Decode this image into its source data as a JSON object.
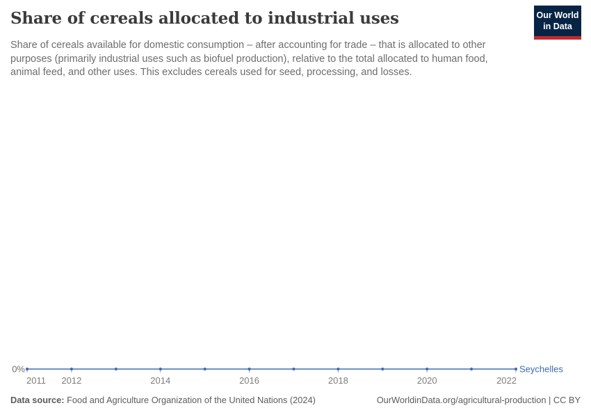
{
  "header": {
    "title": "Share of cereals allocated to industrial uses",
    "subtitle": "Share of cereals available for domestic consumption – after accounting for trade – that is allocated to other purposes (primarily industrial uses such as biofuel production), relative to the total allocated to human food, animal feed, and other uses. This excludes cereals used for seed, processing, and losses.",
    "logo": {
      "line1": "Our World",
      "line2": "in Data",
      "bg_color": "#082445",
      "bar_color": "#c5292d"
    }
  },
  "chart_data": {
    "type": "line",
    "title": "Share of cereals allocated to industrial uses",
    "x": [
      2011,
      2012,
      2013,
      2014,
      2015,
      2016,
      2017,
      2018,
      2019,
      2020,
      2021,
      2022
    ],
    "series": [
      {
        "name": "Seychelles",
        "color": "#3d6bb3",
        "values": [
          0,
          0,
          0,
          0,
          0,
          0,
          0,
          0,
          0,
          0,
          0,
          0
        ]
      }
    ],
    "unit": "%",
    "x_tick_labels": [
      2011,
      2012,
      2014,
      2016,
      2018,
      2020,
      2022
    ],
    "y_tick_labels": [
      "0%"
    ],
    "ylim": [
      0,
      0
    ],
    "grid": false,
    "legend": "end-of-line entity label"
  },
  "footer": {
    "source_label": "Data source:",
    "source_text": " Food and Agriculture Organization of the United Nations (2024)",
    "link_text": "OurWorldinData.org/agricultural-production | CC BY"
  },
  "colors": {
    "series": "#3d6bb3",
    "axis_text": "#7c7c7c",
    "tick": "#a3a3a3",
    "title_text": "#3b3b3b",
    "subtitle_text": "#6d6d6d",
    "footer_text": "#5c5c5c"
  }
}
